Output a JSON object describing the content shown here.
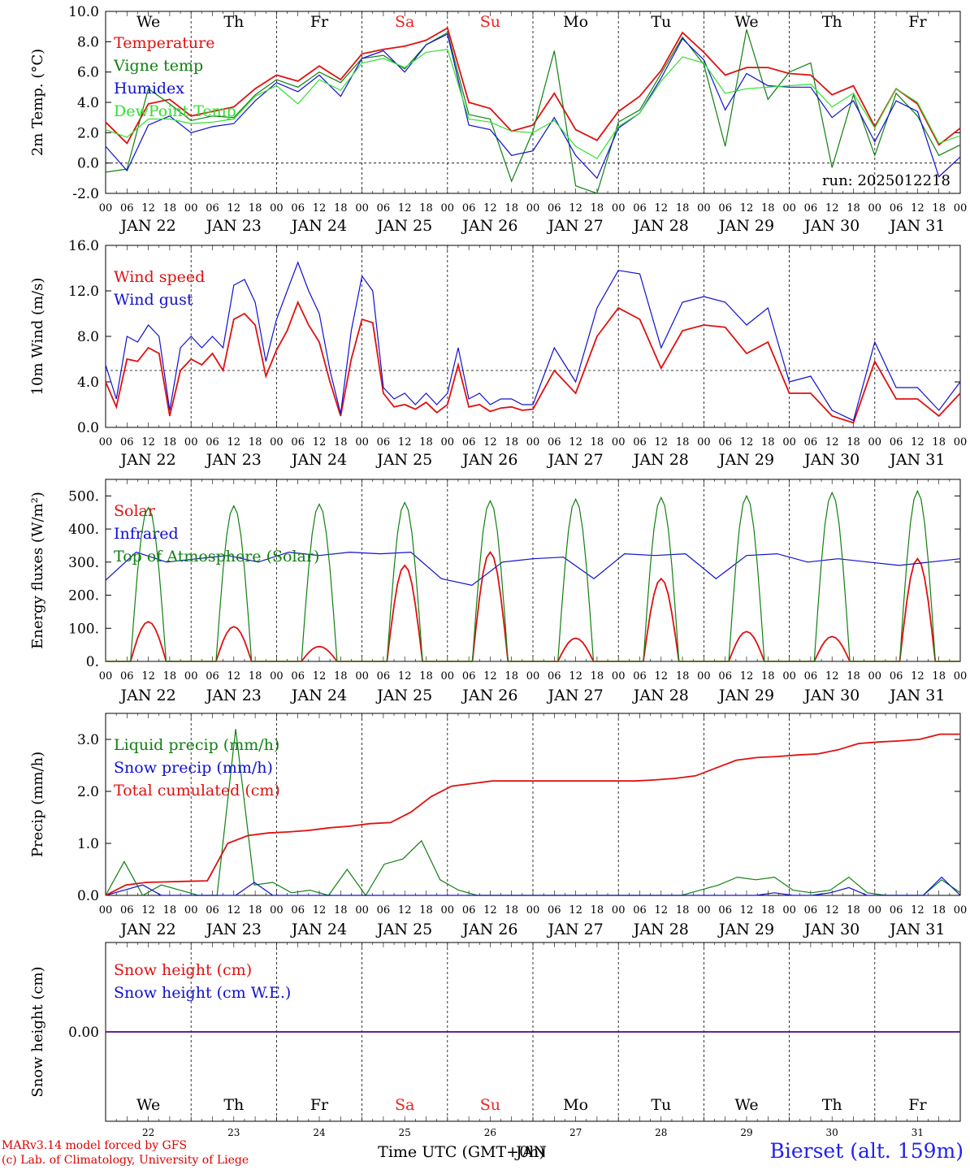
{
  "header": {
    "run_label": "run: 2025012218"
  },
  "days": [
    "We",
    "Th",
    "Fr",
    "Sa",
    "Su",
    "Mo",
    "Tu",
    "We",
    "Th",
    "Fr"
  ],
  "weekend_color": "#ee2222",
  "weekend_days": [
    3,
    4
  ],
  "day_dates": [
    "JAN 22",
    "JAN 23",
    "JAN 24",
    "JAN 25",
    "JAN 26",
    "JAN 27",
    "JAN 28",
    "JAN 29",
    "JAN 30",
    "JAN 31"
  ],
  "day_numbers": [
    "22",
    "23",
    "24",
    "25",
    "26",
    "27",
    "28",
    "29",
    "30",
    "31"
  ],
  "hour_labels": [
    "00",
    "06",
    "12",
    "18"
  ],
  "colors": {
    "red": "#e01010",
    "green": "#108010",
    "blue": "#1010d0",
    "lightgreen": "#30e030"
  },
  "chart_data": [
    {
      "id": "temp",
      "type": "line",
      "ylabel": "2m Temp. (°C)",
      "ylim": [
        -2,
        10
      ],
      "yticks": [
        "-2.0",
        "0.0",
        "2.0",
        "4.0",
        "6.0",
        "8.0",
        "10.0"
      ],
      "ytick_values": [
        -2,
        0,
        2,
        4,
        6,
        8,
        10
      ],
      "dashed_line": 0,
      "x_hours": [
        0,
        6,
        12,
        18,
        24,
        30,
        36,
        42,
        48,
        54,
        60,
        66,
        72,
        78,
        84,
        90,
        96,
        102,
        108,
        114,
        120,
        126,
        132,
        138,
        144,
        150,
        156,
        162,
        168,
        174,
        180,
        186,
        192,
        198,
        204,
        210,
        216,
        222,
        228,
        234,
        240
      ],
      "series": [
        {
          "name": "Temperature",
          "color": "red",
          "values": [
            2.7,
            1.3,
            3.9,
            4.2,
            3.1,
            3.4,
            3.7,
            4.9,
            5.8,
            5.4,
            6.4,
            5.5,
            7.2,
            7.5,
            7.7,
            8.1,
            8.9,
            4.0,
            3.6,
            2.1,
            2.5,
            4.6,
            2.2,
            1.5,
            3.4,
            4.4,
            6.1,
            8.6,
            7.3,
            5.8,
            6.3,
            6.3,
            5.9,
            5.8,
            4.5,
            5.1,
            2.4,
            4.9,
            3.9,
            1.2,
            2.3
          ]
        },
        {
          "name": "Vigne temp",
          "color": "green",
          "values": [
            -0.6,
            -0.4,
            4.9,
            3.9,
            2.8,
            3.1,
            3.0,
            4.5,
            5.5,
            5.0,
            6.0,
            5.3,
            6.9,
            7.1,
            6.2,
            7.8,
            8.6,
            3.2,
            2.9,
            -1.2,
            2.1,
            7.4,
            -1.5,
            -2.0,
            2.7,
            3.5,
            5.9,
            8.3,
            6.5,
            1.1,
            8.8,
            4.2,
            6.0,
            6.6,
            -0.3,
            4.5,
            0.5,
            4.6,
            3.1,
            0.5,
            1.2
          ]
        },
        {
          "name": "Humidex",
          "color": "blue",
          "values": [
            1.1,
            -0.5,
            2.5,
            3.1,
            2.0,
            2.4,
            2.6,
            4.1,
            5.3,
            4.7,
            5.8,
            4.4,
            6.9,
            7.4,
            6.0,
            7.8,
            8.5,
            2.5,
            2.2,
            0.5,
            0.8,
            3.0,
            0.5,
            -1.0,
            2.3,
            3.3,
            5.6,
            8.2,
            6.8,
            3.5,
            5.9,
            5.1,
            5.0,
            5.0,
            3.0,
            4.1,
            1.4,
            4.1,
            3.4,
            -0.9,
            0.4
          ]
        },
        {
          "name": "DewPoint Temp",
          "color": "lightgreen",
          "values": [
            2.2,
            1.7,
            2.9,
            2.9,
            2.6,
            2.7,
            2.9,
            4.4,
            5.1,
            3.9,
            5.5,
            4.8,
            6.6,
            6.9,
            6.3,
            7.3,
            7.5,
            2.9,
            2.7,
            2.1,
            2.0,
            2.8,
            1.1,
            0.3,
            2.4,
            3.3,
            5.4,
            7.0,
            6.6,
            4.6,
            4.9,
            5.0,
            5.1,
            5.2,
            3.7,
            4.6,
            2.3,
            4.9,
            4.0,
            1.3,
            1.8
          ]
        }
      ]
    },
    {
      "id": "wind",
      "type": "line",
      "ylabel": "10m Wind (m/s)",
      "ylim": [
        0,
        16
      ],
      "yticks": [
        "0.0",
        "4.0",
        "8.0",
        "12.0",
        "16.0"
      ],
      "ytick_values": [
        0,
        4,
        8,
        12,
        16
      ],
      "dashed_line": 5,
      "x_hours": [
        0,
        3,
        6,
        9,
        12,
        15,
        18,
        21,
        24,
        27,
        30,
        33,
        36,
        39,
        42,
        45,
        48,
        51,
        54,
        57,
        60,
        63,
        66,
        69,
        72,
        75,
        78,
        81,
        84,
        87,
        90,
        93,
        96,
        99,
        102,
        105,
        108,
        111,
        114,
        117,
        120,
        120,
        126,
        132,
        138,
        144,
        150,
        156,
        162,
        168,
        174,
        180,
        186,
        192,
        198,
        204,
        210,
        216,
        222,
        228,
        234,
        240
      ],
      "series": [
        {
          "name": "Wind speed",
          "color": "red",
          "values": [
            4.0,
            1.8,
            6.0,
            5.8,
            7.0,
            6.5,
            1.0,
            5.0,
            6.0,
            5.5,
            6.5,
            5.0,
            9.5,
            10.0,
            9.0,
            4.5,
            6.8,
            8.5,
            11.0,
            9.0,
            7.5,
            4.0,
            1.0,
            6.0,
            9.5,
            9.2,
            3.0,
            1.8,
            2.0,
            1.6,
            2.2,
            1.3,
            2.0,
            5.5,
            1.8,
            2.0,
            1.4,
            1.7,
            1.8,
            1.5,
            1.6,
            1.6,
            5.0,
            3.0,
            8.0,
            10.5,
            9.5,
            5.2,
            8.5,
            9.0,
            8.8,
            6.5,
            7.5,
            3.0,
            3.0,
            1.0,
            0.4,
            5.8,
            2.5,
            2.5,
            1.0,
            3.0
          ]
        },
        {
          "name": "Wind gust",
          "color": "blue",
          "values": [
            5.5,
            2.5,
            8.0,
            7.5,
            9.0,
            8.0,
            1.5,
            7.0,
            8.0,
            7.0,
            8.0,
            7.0,
            12.5,
            13.0,
            11.0,
            5.8,
            9.5,
            12.0,
            14.5,
            12.0,
            10.0,
            5.0,
            1.2,
            8.5,
            13.3,
            12.0,
            3.5,
            2.5,
            3.0,
            2.0,
            3.0,
            2.0,
            3.0,
            7.0,
            2.5,
            3.0,
            2.0,
            2.5,
            2.5,
            2.0,
            2.0,
            2.0,
            7.0,
            4.0,
            10.5,
            13.8,
            13.5,
            7.0,
            11.0,
            11.5,
            11.0,
            9.0,
            10.5,
            4.0,
            4.5,
            1.5,
            0.6,
            7.5,
            3.5,
            3.5,
            1.5,
            4.0
          ]
        }
      ]
    },
    {
      "id": "energy",
      "type": "line",
      "ylabel": "Energy fluxes (W/m²)",
      "ylim": [
        0,
        550
      ],
      "yticks": [
        "0.",
        "100.",
        "200.",
        "300.",
        "400.",
        "500."
      ],
      "ytick_values": [
        0,
        100,
        200,
        300,
        400,
        500
      ],
      "series": [
        {
          "name": "Solar",
          "color": "red",
          "peaks": [
            120,
            105,
            45,
            290,
            330,
            70,
            250,
            90,
            75,
            310
          ]
        },
        {
          "name": "Infrared",
          "color": "blue",
          "values": [
            245,
            330,
            300,
            310,
            320,
            300,
            330,
            320,
            330,
            325,
            330,
            250,
            230,
            300,
            310,
            315,
            250,
            325,
            320,
            325,
            250,
            320,
            325,
            300,
            310,
            300,
            290,
            300,
            310
          ]
        },
        {
          "name": "Top of Atmosphere (Solar)",
          "color": "green",
          "peaks": [
            465,
            470,
            475,
            480,
            485,
            490,
            495,
            500,
            510,
            515
          ]
        }
      ]
    },
    {
      "id": "precip",
      "type": "line",
      "ylabel": "Precip (mm/h)",
      "ylim": [
        0,
        3.5
      ],
      "yticks": [
        "0.0",
        "1.0",
        "2.0",
        "3.0"
      ],
      "ytick_values": [
        0,
        1,
        2,
        3
      ],
      "series": [
        {
          "name": "Liquid precip (mm/h)",
          "color": "green",
          "values": [
            0.0,
            0.65,
            0.0,
            0.2,
            0.1,
            0.0,
            0.0,
            3.2,
            0.2,
            0.25,
            0.05,
            0.1,
            0.0,
            0.5,
            0.0,
            0.6,
            0.7,
            1.05,
            0.3,
            0.1,
            0.0,
            0.0,
            0.0,
            0.0,
            0.0,
            0.0,
            0.0,
            0.0,
            0.0,
            0.0,
            0.0,
            0.0,
            0.1,
            0.2,
            0.35,
            0.3,
            0.35,
            0.1,
            0.05,
            0.1,
            0.35,
            0.05,
            0.0,
            0.0,
            0.0,
            0.3,
            0.05
          ]
        },
        {
          "name": "Snow precip (mm/h)",
          "color": "blue",
          "values": [
            0.0,
            0.1,
            0.2,
            0.0,
            0.0,
            0.0,
            0.0,
            0.0,
            0.25,
            0.0,
            0.0,
            0.0,
            0.0,
            0.0,
            0.0,
            0.0,
            0.0,
            0.0,
            0.0,
            0.0,
            0.0,
            0.0,
            0.0,
            0.0,
            0.0,
            0.0,
            0.0,
            0.0,
            0.0,
            0.0,
            0.0,
            0.0,
            0.0,
            0.0,
            0.0,
            0.0,
            0.05,
            0.0,
            0.0,
            0.05,
            0.15,
            0.0,
            0.0,
            0.0,
            0.0,
            0.35,
            0.0
          ]
        },
        {
          "name": "Total cumulated (cm)",
          "color": "red",
          "values": [
            0.0,
            0.2,
            0.25,
            0.26,
            0.27,
            0.28,
            1.0,
            1.15,
            1.2,
            1.22,
            1.25,
            1.3,
            1.33,
            1.38,
            1.4,
            1.6,
            1.9,
            2.1,
            2.15,
            2.2,
            2.2,
            2.2,
            2.2,
            2.2,
            2.2,
            2.2,
            2.2,
            2.22,
            2.25,
            2.3,
            2.45,
            2.6,
            2.65,
            2.67,
            2.7,
            2.72,
            2.8,
            2.92,
            2.95,
            2.97,
            3.0,
            3.1,
            3.1
          ]
        }
      ]
    },
    {
      "id": "snow",
      "type": "line",
      "ylabel": "Snow height (cm)",
      "ylim": [
        -1,
        1
      ],
      "yticks": [
        "0.00"
      ],
      "ytick_values": [
        0
      ],
      "series": [
        {
          "name": "Snow height (cm)",
          "color": "red",
          "values": [
            0,
            0
          ]
        },
        {
          "name": "Snow height (cm W.E.)",
          "color": "blue",
          "values": [
            0,
            0
          ]
        }
      ]
    }
  ],
  "footer": {
    "xlabel": "Time UTC (GMT+0h)",
    "xlabel_overlap": "JAN",
    "credit_line1": "MARv3.14 model forced by GFS",
    "credit_line2": "(c) Lab. of Climatology, University of Liege",
    "station": "Bierset (alt. 159m)"
  }
}
